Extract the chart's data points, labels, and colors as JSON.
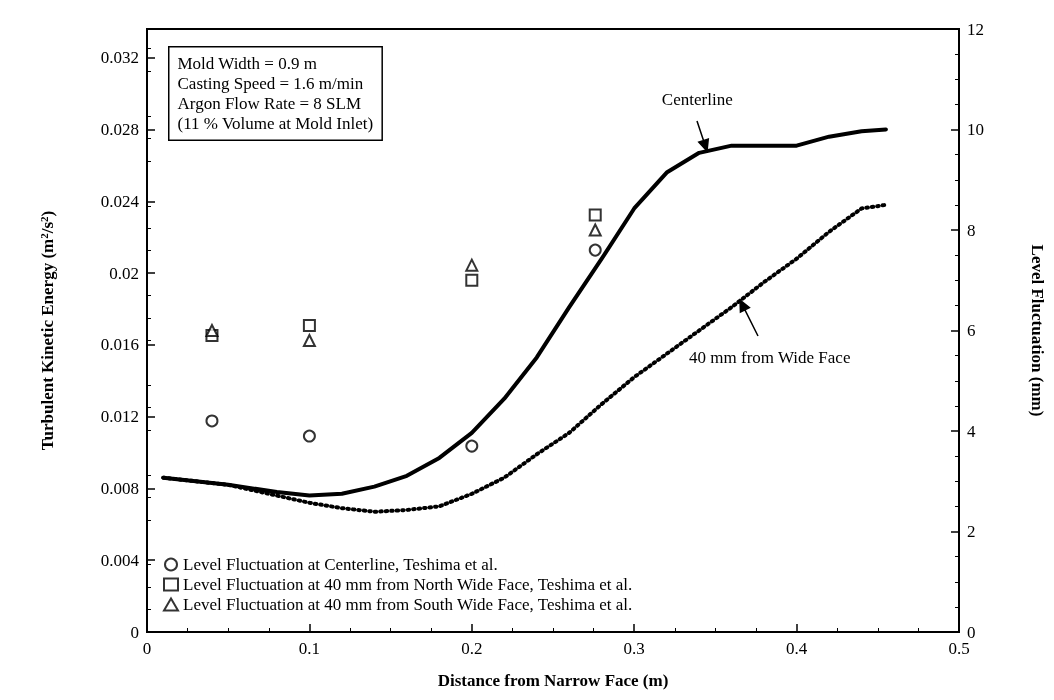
{
  "chart_data": {
    "type": "line",
    "xlabel": "Distance from Narrow Face (m)",
    "ylabel": "Turbulent Kinetic Energy (m$^{2}$/s$^{2}$)",
    "y2label": "Level Fluctuation (mm)",
    "xlim": [
      0,
      0.5
    ],
    "xticks": [
      0,
      0.1,
      0.2,
      0.3,
      0.4,
      0.5
    ],
    "ylim": [
      0,
      0.0336
    ],
    "yticks": [
      0,
      0.004,
      0.008,
      0.012,
      0.016,
      0.02,
      0.024,
      0.028,
      0.032
    ],
    "y2lim": [
      0,
      12
    ],
    "y2ticks": [
      0,
      2,
      4,
      6,
      8,
      10,
      12
    ],
    "grid": false,
    "legend": "bottom left",
    "annotations": [
      "Mold Width = 0.9 m",
      "Casting Speed = 1.6 m/min",
      "Argon Flow Rate = 8 SLM",
      "(11 % Volume at Mold Inlet)",
      {
        "text": "Centerline",
        "x": 0.345,
        "y": 0.0268
      },
      {
        "text": "40 mm from Wide Face",
        "x": 0.365,
        "y": 0.0185
      }
    ],
    "series": [
      {
        "color": "#000000",
        "line_style": "solid",
        "marker": "none",
        "x": [
          0.01,
          0.05,
          0.08,
          0.1,
          0.12,
          0.14,
          0.16,
          0.18,
          0.2,
          0.22,
          0.24,
          0.26,
          0.28,
          0.3,
          0.32,
          0.34,
          0.36,
          0.38,
          0.4,
          0.42,
          0.44,
          0.455
        ],
        "values": [
          0.0086,
          0.0082,
          0.0078,
          0.0076,
          0.0077,
          0.0081,
          0.0087,
          0.0097,
          0.0111,
          0.013,
          0.0153,
          0.0181,
          0.0208,
          0.0236,
          0.0256,
          0.0267,
          0.0271,
          0.0271,
          0.0271,
          0.0276,
          0.0279,
          0.028
        ]
      },
      {
        "color": "#000000",
        "line_style": "dotted",
        "marker": "none",
        "x": [
          0.01,
          0.05,
          0.08,
          0.1,
          0.12,
          0.14,
          0.16,
          0.18,
          0.2,
          0.22,
          0.24,
          0.26,
          0.28,
          0.3,
          0.32,
          0.34,
          0.36,
          0.38,
          0.4,
          0.42,
          0.44,
          0.455
        ],
        "values": [
          0.0086,
          0.0082,
          0.0076,
          0.0072,
          0.0069,
          0.0067,
          0.0068,
          0.007,
          0.0077,
          0.0086,
          0.0099,
          0.0111,
          0.0127,
          0.0142,
          0.0155,
          0.0168,
          0.0181,
          0.0195,
          0.0208,
          0.0223,
          0.0236,
          0.0238
        ]
      },
      {
        "type": "scatter",
        "name": "Level Fluctuation at Centerline, Teshima et al.",
        "color": "#000000",
        "marker": "circle",
        "axis": "y2",
        "x": [
          0.04,
          0.1,
          0.2,
          0.276
        ],
        "values": [
          4.2,
          3.9,
          3.7,
          7.6
        ]
      },
      {
        "type": "scatter",
        "name": "Level Fluctuation at 40 mm from North Wide Face, Teshima et al.",
        "color": "#000000",
        "marker": "square",
        "axis": "y2",
        "x": [
          0.04,
          0.1,
          0.2,
          0.276
        ],
        "values": [
          5.9,
          6.1,
          7.0,
          8.3
        ]
      },
      {
        "type": "scatter",
        "name": "Level Fluctuation at 40 mm from South Wide Face, Teshima et al.",
        "color": "#000000",
        "marker": "triangle",
        "axis": "y2",
        "x": [
          0.04,
          0.1,
          0.2,
          0.276
        ],
        "values": [
          6.0,
          5.8,
          7.3,
          8.0
        ]
      }
    ]
  }
}
